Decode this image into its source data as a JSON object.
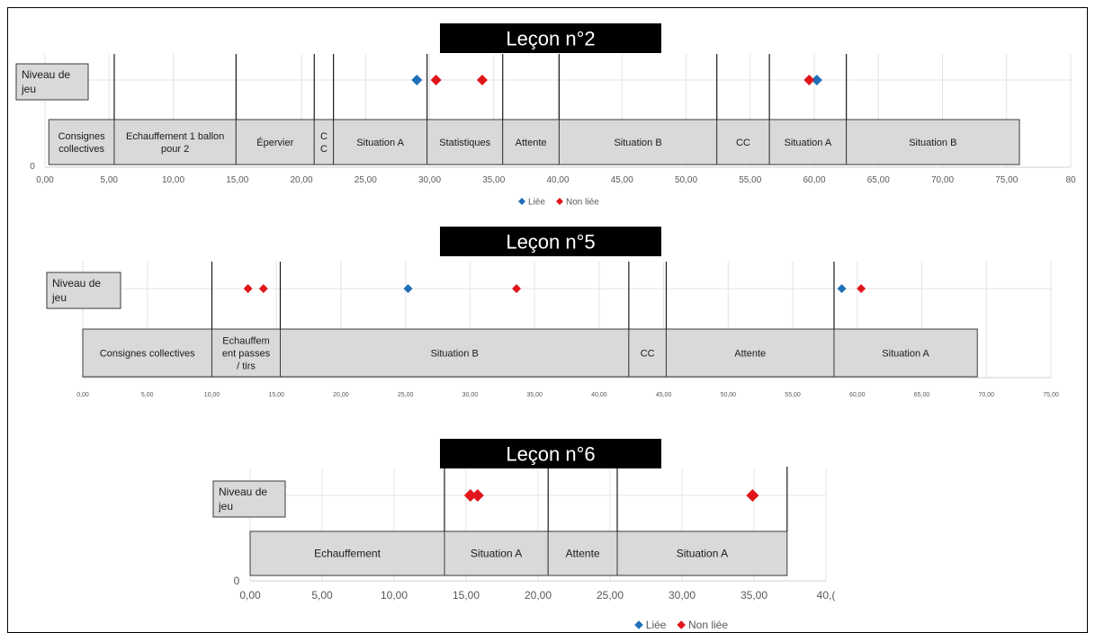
{
  "chart_data": [
    {
      "type": "timeline",
      "title": "Leçon n°2",
      "ylabel_box": "Niveau de jeu",
      "y_zero_label": "0",
      "xlim": [
        0,
        80
      ],
      "ticks": [
        "0,00",
        "5,00",
        "10,00",
        "15,00",
        "20,00",
        "25,00",
        "30,00",
        "35,00",
        "40,00",
        "45,00",
        "50,00",
        "55,00",
        "60,00",
        "65,00",
        "70,00",
        "75,00",
        "80"
      ],
      "segments": [
        {
          "label": "Consignes collectives",
          "start": 0.3,
          "end": 5.4
        },
        {
          "label": "Echauffement 1 ballon pour 2",
          "start": 5.4,
          "end": 14.9
        },
        {
          "label": "Épervier",
          "start": 14.9,
          "end": 21.0
        },
        {
          "label": "C C",
          "start": 21.0,
          "end": 22.5
        },
        {
          "label": "Situation A",
          "start": 22.5,
          "end": 29.8
        },
        {
          "label": "Statistiques",
          "start": 29.8,
          "end": 35.7
        },
        {
          "label": "Attente",
          "start": 35.7,
          "end": 40.1
        },
        {
          "label": "Situation B",
          "start": 40.1,
          "end": 52.4
        },
        {
          "label": "CC",
          "start": 52.4,
          "end": 56.5
        },
        {
          "label": "Situation A",
          "start": 56.5,
          "end": 62.5
        },
        {
          "label": "Situation B",
          "start": 62.5,
          "end": 76.0
        }
      ],
      "series": [
        {
          "name": "Liée",
          "color": "#1f6fb8",
          "x": [
            29.0,
            60.2
          ]
        },
        {
          "name": "Non liée",
          "color": "#e0161b",
          "x": [
            30.5,
            34.1,
            59.6
          ]
        }
      ],
      "legend": [
        "Liée",
        "Non liée"
      ]
    },
    {
      "type": "timeline",
      "title": "Leçon n°5",
      "ylabel_box": "Niveau de jeu",
      "y_zero_label": "",
      "xlim": [
        0,
        75
      ],
      "ticks": [
        "0,00",
        "5,00",
        "10,00",
        "15,00",
        "20,00",
        "25,00",
        "30,00",
        "35,00",
        "40,00",
        "45,00",
        "50,00",
        "55,00",
        "60,00",
        "65,00",
        "70,00",
        "75,00"
      ],
      "segments": [
        {
          "label": "Consignes collectives",
          "start": 0.0,
          "end": 10.0
        },
        {
          "label": "Echauffem ent passes / tirs",
          "start": 10.0,
          "end": 15.3
        },
        {
          "label": "Situation B",
          "start": 15.3,
          "end": 42.3
        },
        {
          "label": "CC",
          "start": 42.3,
          "end": 45.2
        },
        {
          "label": "Attente",
          "start": 45.2,
          "end": 58.2
        },
        {
          "label": "Situation A",
          "start": 58.2,
          "end": 69.3
        }
      ],
      "series": [
        {
          "name": "Liée",
          "color": "#1f6fb8",
          "x": [
            25.2,
            58.8
          ]
        },
        {
          "name": "Non liée",
          "color": "#e0161b",
          "x": [
            12.8,
            14.0,
            33.6,
            60.3
          ]
        }
      ],
      "legend": []
    },
    {
      "type": "timeline",
      "title": "Leçon n°6",
      "ylabel_box": "Niveau de jeu",
      "y_zero_label": "0",
      "xlim": [
        0,
        40
      ],
      "ticks": [
        "0,00",
        "5,00",
        "10,00",
        "15,00",
        "20,00",
        "25,00",
        "30,00",
        "35,00",
        "40,("
      ],
      "segments": [
        {
          "label": "Echauffement",
          "start": 0.0,
          "end": 13.5
        },
        {
          "label": "Situation A",
          "start": 13.5,
          "end": 20.7
        },
        {
          "label": "Attente",
          "start": 20.7,
          "end": 25.5
        },
        {
          "label": "Situation A",
          "start": 25.5,
          "end": 37.3
        }
      ],
      "series": [
        {
          "name": "Liée",
          "color": "#1f6fb8",
          "x": []
        },
        {
          "name": "Non liée",
          "color": "#e0161b",
          "x": [
            15.3,
            15.8,
            34.9
          ]
        }
      ],
      "legend": [
        "Liée",
        "Non liée"
      ]
    }
  ]
}
